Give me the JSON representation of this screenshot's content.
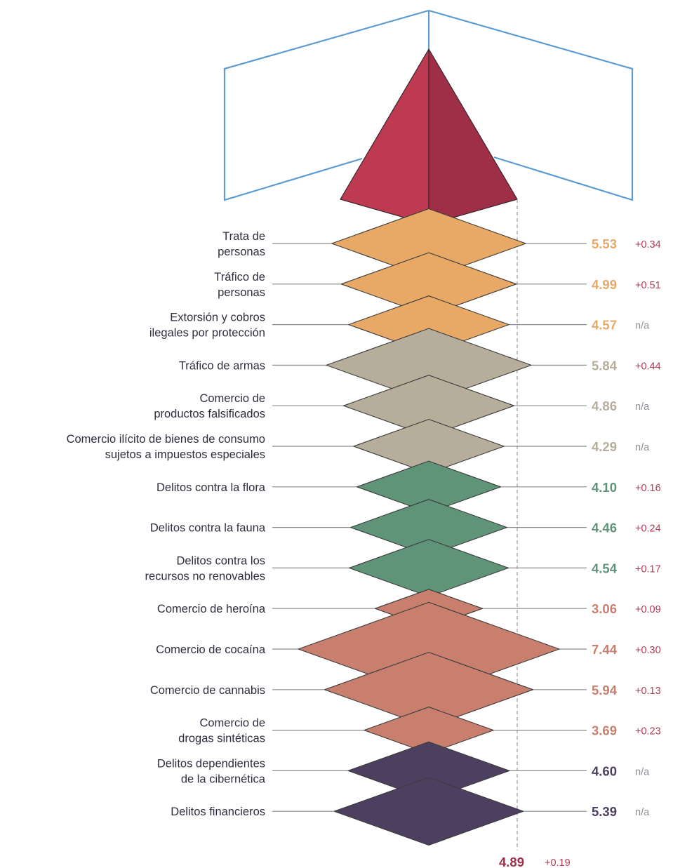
{
  "colors": {
    "trata": "#e8a866",
    "comercio": "#b6ae9b",
    "ambiental": "#5f9478",
    "drogas": "#c87f6e",
    "ciber": "#4d3f60",
    "pyramid_left": "#bd3a50",
    "pyramid_right": "#9f2f46",
    "frame": "#5b9bd0",
    "change_positive": "#b53a55",
    "change_na": "#8f8f98",
    "label_text": "#2e2e3e"
  },
  "chart_data": {
    "type": "diamond-ladder",
    "title": "",
    "items": [
      {
        "label": [
          "Trata de",
          "personas"
        ],
        "value": 5.53,
        "value_text": "5.53",
        "change": "+0.34",
        "group": "trata"
      },
      {
        "label": [
          "Tráfico de",
          "personas"
        ],
        "value": 4.99,
        "value_text": "4.99",
        "change": "+0.51",
        "group": "trata"
      },
      {
        "label": [
          "Extorsión y cobros",
          "ilegales por protección"
        ],
        "value": 4.57,
        "value_text": "4.57",
        "change": "n/a",
        "group": "trata"
      },
      {
        "label": [
          "Tráfico de armas"
        ],
        "value": 5.84,
        "value_text": "5.84",
        "change": "+0.44",
        "group": "comercio"
      },
      {
        "label": [
          "Comercio de",
          "productos falsificados"
        ],
        "value": 4.86,
        "value_text": "4.86",
        "change": "n/a",
        "group": "comercio"
      },
      {
        "label": [
          "Comercio ilícito de bienes de consumo",
          "sujetos a impuestos especiales"
        ],
        "value": 4.29,
        "value_text": "4.29",
        "change": "n/a",
        "group": "comercio"
      },
      {
        "label": [
          "Delitos contra la flora"
        ],
        "value": 4.1,
        "value_text": "4.10",
        "change": "+0.16",
        "group": "ambiental"
      },
      {
        "label": [
          "Delitos contra la fauna"
        ],
        "value": 4.46,
        "value_text": "4.46",
        "change": "+0.24",
        "group": "ambiental"
      },
      {
        "label": [
          "Delitos contra los",
          "recursos no renovables"
        ],
        "value": 4.54,
        "value_text": "4.54",
        "change": "+0.17",
        "group": "ambiental"
      },
      {
        "label": [
          "Comercio de heroína"
        ],
        "value": 3.06,
        "value_text": "3.06",
        "change": "+0.09",
        "group": "drogas"
      },
      {
        "label": [
          "Comercio de cocaína"
        ],
        "value": 7.44,
        "value_text": "7.44",
        "change": "+0.30",
        "group": "drogas"
      },
      {
        "label": [
          "Comercio de cannabis"
        ],
        "value": 5.94,
        "value_text": "5.94",
        "change": "+0.13",
        "group": "drogas"
      },
      {
        "label": [
          "Comercio de",
          "drogas sintéticas"
        ],
        "value": 3.69,
        "value_text": "3.69",
        "change": "+0.23",
        "group": "drogas"
      },
      {
        "label": [
          "Delitos dependientes",
          "de la cibernética"
        ],
        "value": 4.6,
        "value_text": "4.60",
        "change": "n/a",
        "group": "ciber"
      },
      {
        "label": [
          "Delitos financieros"
        ],
        "value": 5.39,
        "value_text": "5.39",
        "change": "n/a",
        "group": "ciber"
      }
    ],
    "overall": {
      "value": 4.89,
      "value_text": "4.89",
      "change": "+0.19"
    }
  }
}
